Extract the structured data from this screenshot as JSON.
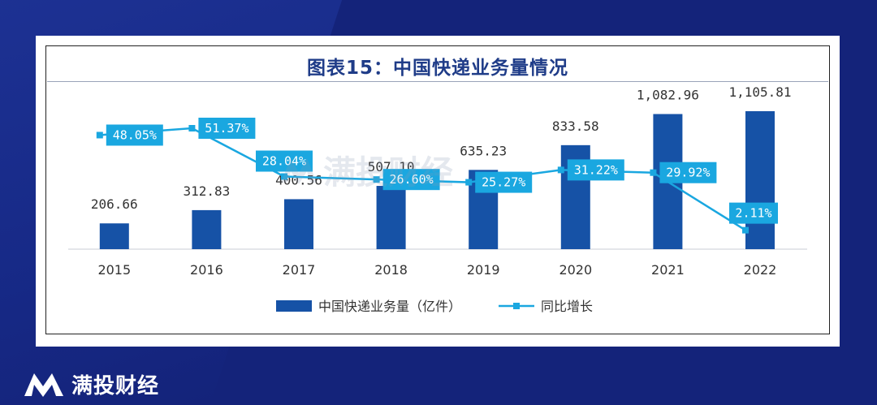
{
  "brand": {
    "name": "满投财经",
    "watermark": "满投财经"
  },
  "colors": {
    "background": "#14237a",
    "bar": "#1652a6",
    "line": "#1aa7e0",
    "title": "#1f3c88"
  },
  "chart_data": {
    "type": "bar+line",
    "title": "图表15：中国快递业务量情况",
    "categories": [
      "2015",
      "2016",
      "2017",
      "2018",
      "2019",
      "2020",
      "2021",
      "2022"
    ],
    "series": [
      {
        "name": "中国快递业务量（亿件）",
        "type": "bar",
        "values": [
          206.66,
          312.83,
          400.56,
          507.1,
          635.23,
          833.58,
          1082.96,
          1105.81
        ],
        "labels": [
          "206.66",
          "312.83",
          "400.56",
          "507.10",
          "635.23",
          "833.58",
          "1,082.96",
          "1,105.81"
        ]
      },
      {
        "name": "同比增长",
        "type": "line",
        "values": [
          48.05,
          51.37,
          28.04,
          26.6,
          25.27,
          31.22,
          29.92,
          2.11
        ],
        "labels": [
          "48.05%",
          "51.37%",
          "28.04%",
          "26.60%",
          "25.27%",
          "31.22%",
          "29.92%",
          "2.11%"
        ]
      }
    ],
    "legend_position": "bottom",
    "grid": false
  }
}
